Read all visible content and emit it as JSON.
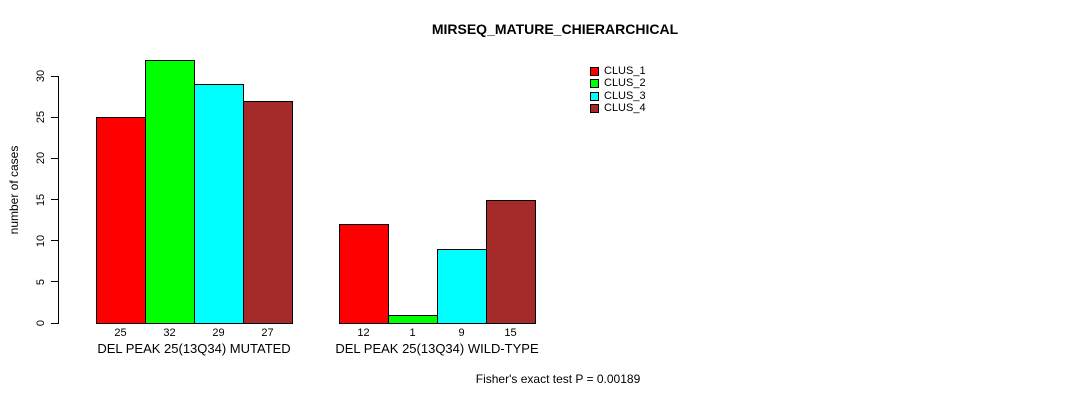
{
  "chart_data": {
    "type": "bar",
    "title": "MIRSEQ_MATURE_CHIERARCHICAL",
    "xlabel": "",
    "ylabel": "number of cases",
    "ylim": [
      0,
      32
    ],
    "yticks": [
      0,
      5,
      10,
      15,
      20,
      25,
      30
    ],
    "grid": false,
    "legend_position": "top-right",
    "categories": [
      "DEL PEAK 25(13Q34) MUTATED",
      "DEL PEAK 25(13Q34) WILD-TYPE"
    ],
    "series": [
      {
        "name": "CLUS_1",
        "color": "#FF0000",
        "values": [
          25,
          12
        ]
      },
      {
        "name": "CLUS_2",
        "color": "#00FF00",
        "values": [
          32,
          1
        ]
      },
      {
        "name": "CLUS_3",
        "color": "#00FFFF",
        "values": [
          29,
          9
        ]
      },
      {
        "name": "CLUS_4",
        "color": "#A52A2A",
        "values": [
          27,
          15
        ]
      }
    ],
    "bar_value_labels": [
      [
        25,
        32,
        29,
        27
      ],
      [
        12,
        1,
        9,
        15
      ]
    ],
    "annotation": "Fisher's exact test P = 0.00189"
  }
}
